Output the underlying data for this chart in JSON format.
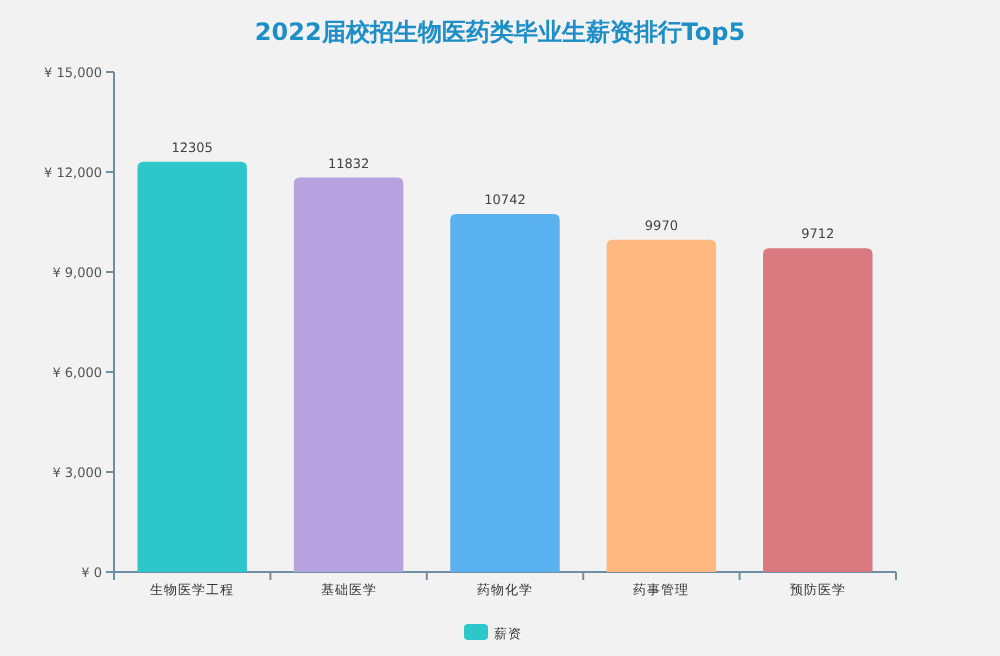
{
  "chart_data": {
    "type": "bar",
    "title": "2022届校招生物医药类毕业生薪资排行Top5",
    "categories": [
      "生物医学工程",
      "基础医学",
      "药物化学",
      "药事管理",
      "预防医学"
    ],
    "series": [
      {
        "name": "薪资",
        "color": "#2ec7c9",
        "colors": [
          "#2ec7c9",
          "#b6a2de",
          "#5ab1ef",
          "#ffb980",
          "#d87a80"
        ],
        "values": [
          12305,
          11832,
          10742,
          9970,
          9712
        ]
      }
    ],
    "ylim": [
      0,
      15000
    ],
    "yticks": [
      {
        "value": 0,
        "label": "¥ 0"
      },
      {
        "value": 3000,
        "label": "¥ 3,000"
      },
      {
        "value": 6000,
        "label": "¥ 6,000"
      },
      {
        "value": 9000,
        "label": "¥ 9,000"
      },
      {
        "value": 12000,
        "label": "¥ 12,000"
      },
      {
        "value": 15000,
        "label": "¥ 15,000"
      }
    ],
    "data_labels": true,
    "legend": "bottom",
    "grid": false
  }
}
